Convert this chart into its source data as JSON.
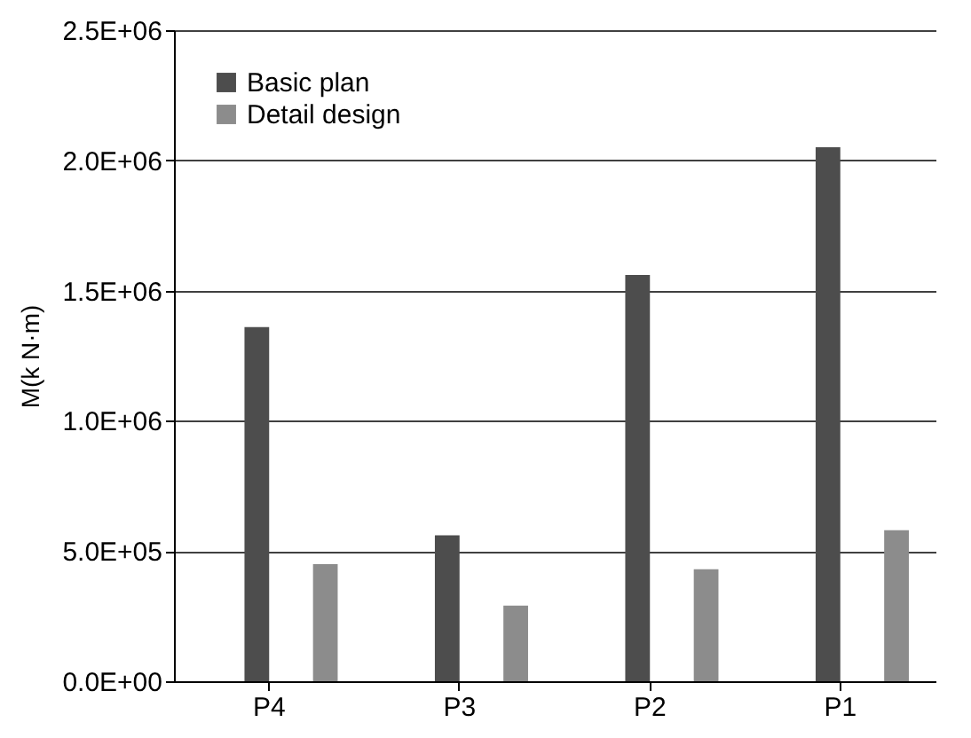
{
  "chart_data": {
    "type": "bar",
    "ylabel": "M(k N·m)",
    "categories": [
      "P4",
      "P3",
      "P2",
      "P1"
    ],
    "series": [
      {
        "name": "Basic plan",
        "color": "#4d4d4d",
        "values": [
          1360000,
          560000,
          1560000,
          2050000
        ]
      },
      {
        "name": "Detail design",
        "color": "#8c8c8c",
        "values": [
          450000,
          290000,
          430000,
          580000
        ]
      }
    ],
    "ylim": [
      0,
      2500000
    ],
    "yticks": [
      {
        "value": 0,
        "label": "0.0E+00"
      },
      {
        "value": 500000,
        "label": "5.0E+05"
      },
      {
        "value": 1000000,
        "label": "1.0E+06"
      },
      {
        "value": 1500000,
        "label": "1.5E+06"
      },
      {
        "value": 2000000,
        "label": "2.0E+06"
      },
      {
        "value": 2500000,
        "label": "2.5E+06"
      }
    ],
    "grid": "y",
    "legend": "top left"
  }
}
